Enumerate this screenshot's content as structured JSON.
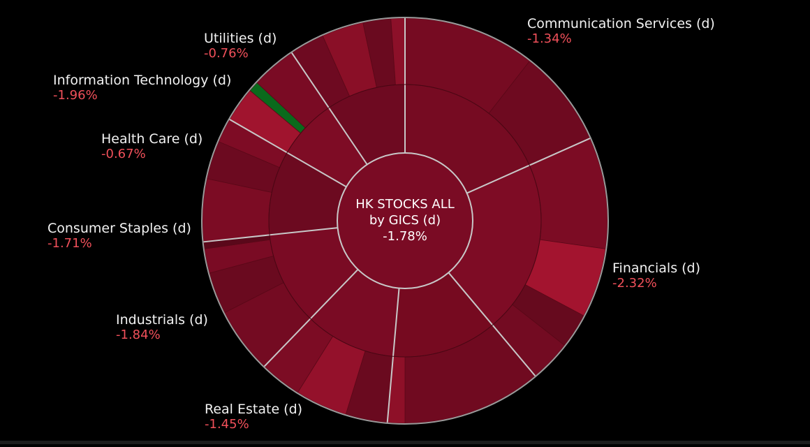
{
  "chart_data": {
    "type": "sunburst",
    "title": "HK STOCKS ALL by GICS (d)",
    "center": {
      "line1": "HK STOCKS ALL",
      "line2": "by GICS (d)",
      "value": "-1.78%"
    },
    "sectors": [
      {
        "name": "Communication Services (d)",
        "change": "-1.34%",
        "color": "#760b22"
      },
      {
        "name": "Financials (d)",
        "change": "-2.32%",
        "color": "#7e0c25"
      },
      {
        "name": "Real Estate (d)",
        "change": "-1.45%",
        "color": "#760a20"
      },
      {
        "name": "Industrials (d)",
        "change": "-1.84%",
        "color": "#7a0b24"
      },
      {
        "name": "Consumer Staples (d)",
        "change": "-1.71%",
        "color": "#7a0b24"
      },
      {
        "name": "Health Care (d)",
        "change": "-0.67%",
        "color": "#6c0a20"
      },
      {
        "name": "Information Technology (d)",
        "change": "-1.96%",
        "color": "#7e0c25"
      },
      {
        "name": "Utilities (d)",
        "change": "-0.76%",
        "color": "#6e0a21"
      }
    ],
    "colors": {
      "background": "#000000",
      "divider": "#c8c8c8",
      "label": "#f2f2f2",
      "negative": "#f0505a",
      "positive": "#0a6a1c"
    }
  }
}
